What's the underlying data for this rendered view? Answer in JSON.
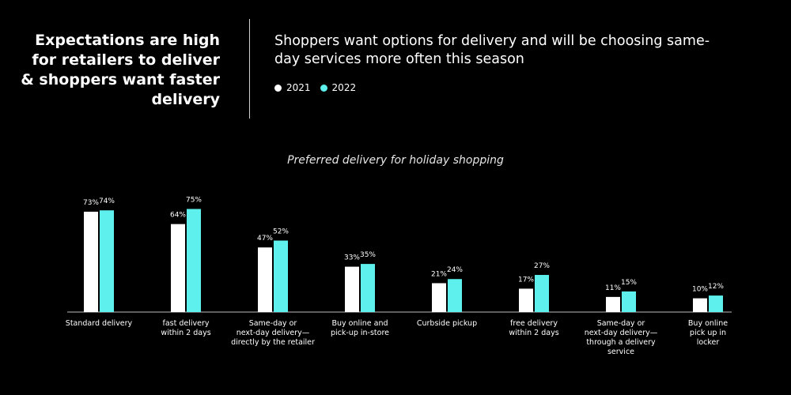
{
  "header": {
    "headline": "Expectations are high for retailers to deliver & shoppers want faster delivery",
    "subheadline": "Shoppers want options for delivery and will be choosing same-day services more often this season"
  },
  "colors": {
    "series_2021": "#ffffff",
    "series_2022": "#5ef0ec",
    "background": "#000000"
  },
  "chart_data": {
    "type": "bar",
    "title": "Preferred delivery for holiday shopping",
    "categories": [
      "Standard delivery",
      "fast delivery within 2 days",
      "Same-day or next-day delivery— directly by the retailer",
      "Buy online and pick-up in-store",
      "Curbside pickup",
      "free delivery within 2 days",
      "Same-day or next-day delivery— through a delivery service",
      "Buy online pick up in locker"
    ],
    "category_lines": [
      [
        "Standard delivery"
      ],
      [
        "fast delivery",
        "within 2 days"
      ],
      [
        "Same-day or",
        "next-day delivery—",
        "directly by the retailer"
      ],
      [
        "Buy online and",
        "pick-up in-store"
      ],
      [
        "Curbside pickup"
      ],
      [
        "free delivery",
        "within 2 days"
      ],
      [
        "Same-day or",
        "next-day delivery—",
        "through a delivery",
        "service"
      ],
      [
        "Buy online",
        "pick up in",
        "locker"
      ]
    ],
    "series": [
      {
        "name": "2021",
        "values": [
          73,
          64,
          47,
          33,
          21,
          17,
          11,
          10
        ]
      },
      {
        "name": "2022",
        "values": [
          74,
          75,
          52,
          35,
          24,
          27,
          15,
          12
        ]
      }
    ],
    "value_suffix": "%",
    "ylim": [
      0,
      80
    ],
    "grid": false,
    "legend": "top-left"
  }
}
